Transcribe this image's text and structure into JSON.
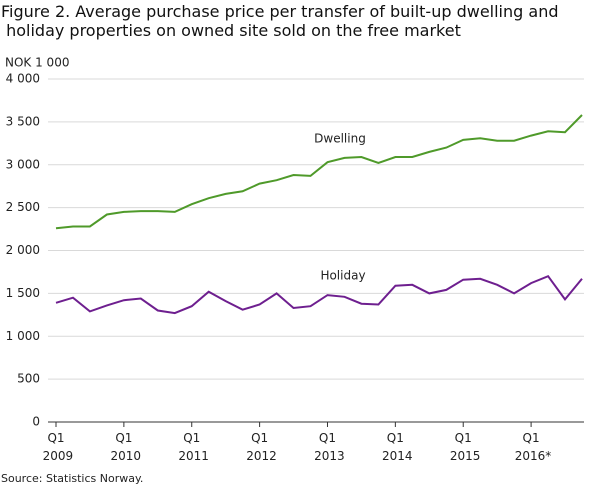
{
  "chart_data": {
    "type": "line",
    "title": "Figure 2. Average purchase price per transfer of built-up dwelling and holiday properties on owned site sold on the free market",
    "y_label": "NOK 1 000",
    "source": "Source: Statistics Norway.",
    "categories": [
      "Q1 2009",
      null,
      null,
      null,
      "Q1 2010",
      null,
      null,
      null,
      "Q1 2011",
      null,
      null,
      null,
      "Q1 2012",
      null,
      null,
      null,
      "Q1 2013",
      null,
      null,
      null,
      "Q1 2014",
      null,
      null,
      null,
      "Q1 2015",
      null,
      null,
      null,
      "Q1 2016*",
      null,
      null,
      null
    ],
    "series": [
      {
        "name": "Dwelling",
        "color": "#4f9a2a",
        "values": [
          2260,
          2280,
          2280,
          2420,
          2450,
          2460,
          2460,
          2450,
          2540,
          2610,
          2660,
          2690,
          2780,
          2820,
          2880,
          2870,
          3030,
          3080,
          3090,
          3020,
          3090,
          3090,
          3150,
          3200,
          3290,
          3310,
          3280,
          3280,
          3340,
          3390,
          3380,
          3580
        ]
      },
      {
        "name": "Holiday",
        "color": "#6e1f8f",
        "values": [
          1390,
          1450,
          1290,
          1360,
          1420,
          1440,
          1300,
          1270,
          1350,
          1520,
          1410,
          1310,
          1370,
          1500,
          1330,
          1350,
          1480,
          1460,
          1380,
          1370,
          1590,
          1600,
          1500,
          1540,
          1660,
          1670,
          1600,
          1500,
          1620,
          1700,
          1430,
          1670
        ]
      }
    ],
    "ylim": [
      0,
      4000
    ],
    "yticks": [
      0,
      500,
      {
        "value": 1000,
        "label": "1 000"
      },
      {
        "value": 1500,
        "label": "1 500"
      },
      {
        "value": 2000,
        "label": "2 000"
      },
      {
        "value": 2500,
        "label": "2 500"
      },
      {
        "value": 3000,
        "label": "3 000"
      },
      {
        "value": 3500,
        "label": "3 500"
      },
      {
        "value": 4000,
        "label": "4 000"
      }
    ],
    "grid": true
  }
}
